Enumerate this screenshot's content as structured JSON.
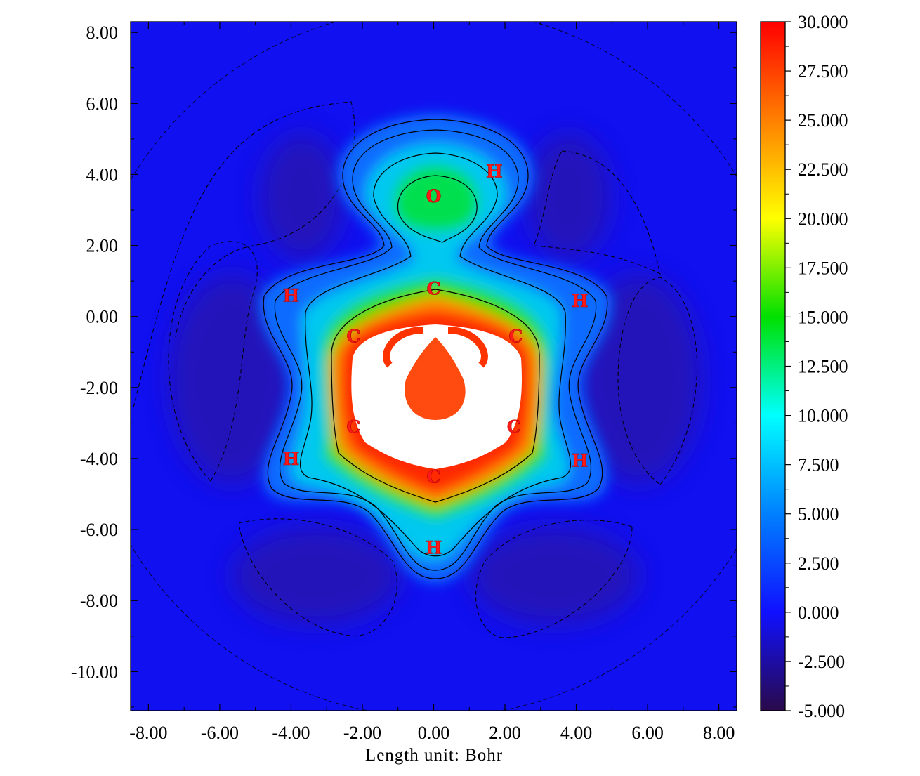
{
  "chart_data": {
    "type": "heatmap",
    "title": "",
    "xlabel": "Length unit: Bohr",
    "ylabel": "",
    "xlim": [
      -8.5,
      8.5
    ],
    "ylim": [
      -11.1,
      8.3
    ],
    "x_ticks": [
      "-8.00",
      "-6.00",
      "-4.00",
      "-2.00",
      "0.00",
      "2.00",
      "4.00",
      "6.00",
      "8.00"
    ],
    "y_ticks": [
      "8.00",
      "6.00",
      "4.00",
      "2.00",
      "0.00",
      "-2.00",
      "-4.00",
      "-6.00",
      "-8.00",
      "-10.00"
    ],
    "colorbar": {
      "min": -5.0,
      "max": 30.0,
      "ticks": [
        "30.000",
        "27.500",
        "25.000",
        "22.500",
        "20.000",
        "17.500",
        "15.000",
        "12.500",
        "10.000",
        "7.500",
        "5.000",
        "2.500",
        "0.000",
        "-2.500",
        "-5.000"
      ],
      "colors": [
        "#2a0a4a",
        "#1010ff",
        "#0080ff",
        "#00ffff",
        "#00e000",
        "#ffff00",
        "#ff8000",
        "#ff0000"
      ],
      "above_max_color": "#ffffff"
    },
    "atoms": [
      {
        "label": "O",
        "x": 0.0,
        "y": 3.4
      },
      {
        "label": "H",
        "x": 1.7,
        "y": 4.1
      },
      {
        "label": "C",
        "x": 0.0,
        "y": 0.8
      },
      {
        "label": "H",
        "x": -4.0,
        "y": 0.6
      },
      {
        "label": "H",
        "x": 4.1,
        "y": 0.45
      },
      {
        "label": "C",
        "x": -2.25,
        "y": -0.55
      },
      {
        "label": "C",
        "x": 2.3,
        "y": -0.55
      },
      {
        "label": "C",
        "x": -2.25,
        "y": -3.1
      },
      {
        "label": "C",
        "x": 2.25,
        "y": -3.1
      },
      {
        "label": "H",
        "x": -4.0,
        "y": -4.0
      },
      {
        "label": "H",
        "x": 4.1,
        "y": -4.05
      },
      {
        "label": "C",
        "x": 0.0,
        "y": -4.5
      },
      {
        "label": "H",
        "x": 0.0,
        "y": -6.5
      }
    ],
    "grid": false,
    "legend": "colorbar-right"
  }
}
